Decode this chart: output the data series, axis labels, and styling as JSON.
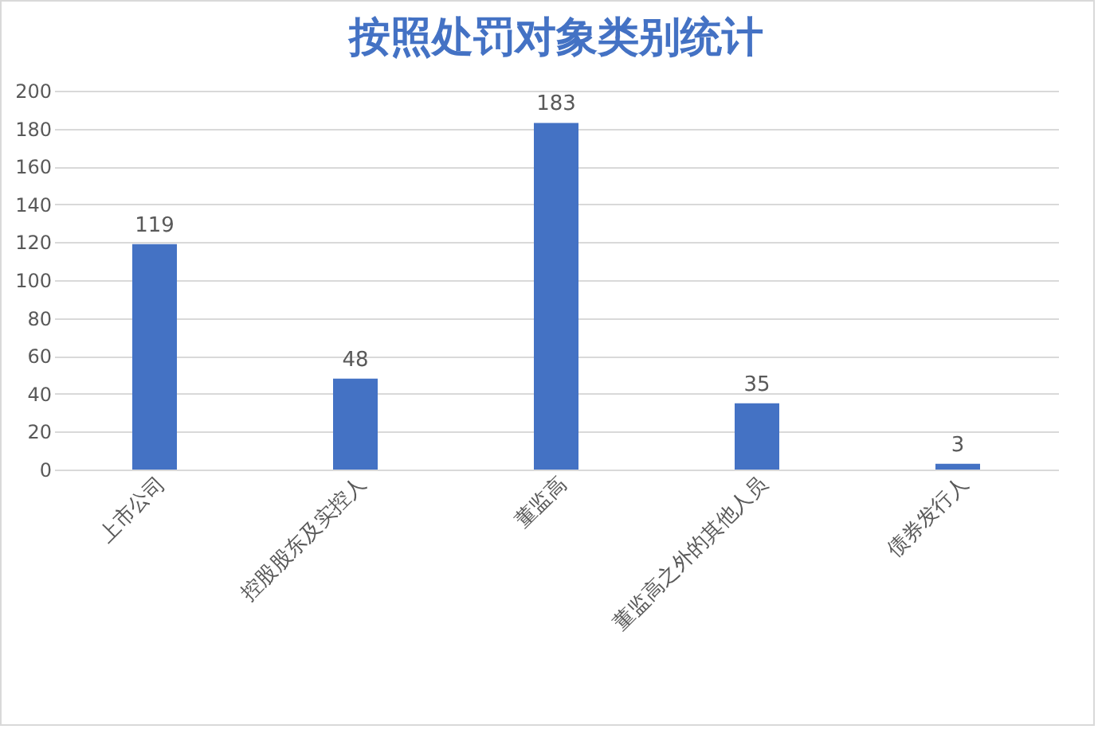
{
  "chart_data": {
    "type": "bar",
    "title": "按照处罚对象类别统计",
    "categories": [
      "上市公司",
      "控股股东及实控人",
      "董监高",
      "董监高之外的其他人员",
      "债券发行人"
    ],
    "values": [
      119,
      48,
      183,
      35,
      3
    ],
    "color": "#4472c4",
    "ylim": [
      0,
      200
    ],
    "yticks": [
      0,
      20,
      40,
      60,
      80,
      100,
      120,
      140,
      160,
      180,
      200
    ],
    "grid": "y",
    "data_labels": true
  }
}
